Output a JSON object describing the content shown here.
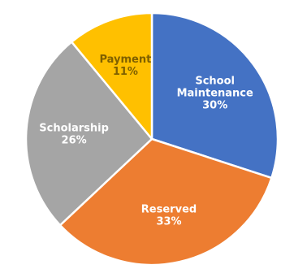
{
  "chart_data": {
    "type": "pie",
    "slices": [
      {
        "label_lines": [
          "School",
          "Maintenance"
        ],
        "value": 30,
        "value_label": "30%",
        "color": "#4472C4",
        "label_color": "#ffffff"
      },
      {
        "label_lines": [
          "Reserved"
        ],
        "value": 33,
        "value_label": "33%",
        "color": "#ED7D31",
        "label_color": "#ffffff"
      },
      {
        "label_lines": [
          "Scholarship"
        ],
        "value": 26,
        "value_label": "26%",
        "color": "#A5A5A5",
        "label_color": "#ffffff"
      },
      {
        "label_lines": [
          "Payment"
        ],
        "value": 11,
        "value_label": "11%",
        "color": "#FFC000",
        "label_color": "#7f6000"
      }
    ],
    "start_angle_deg": 0,
    "direction": "clockwise",
    "legend": "none"
  }
}
